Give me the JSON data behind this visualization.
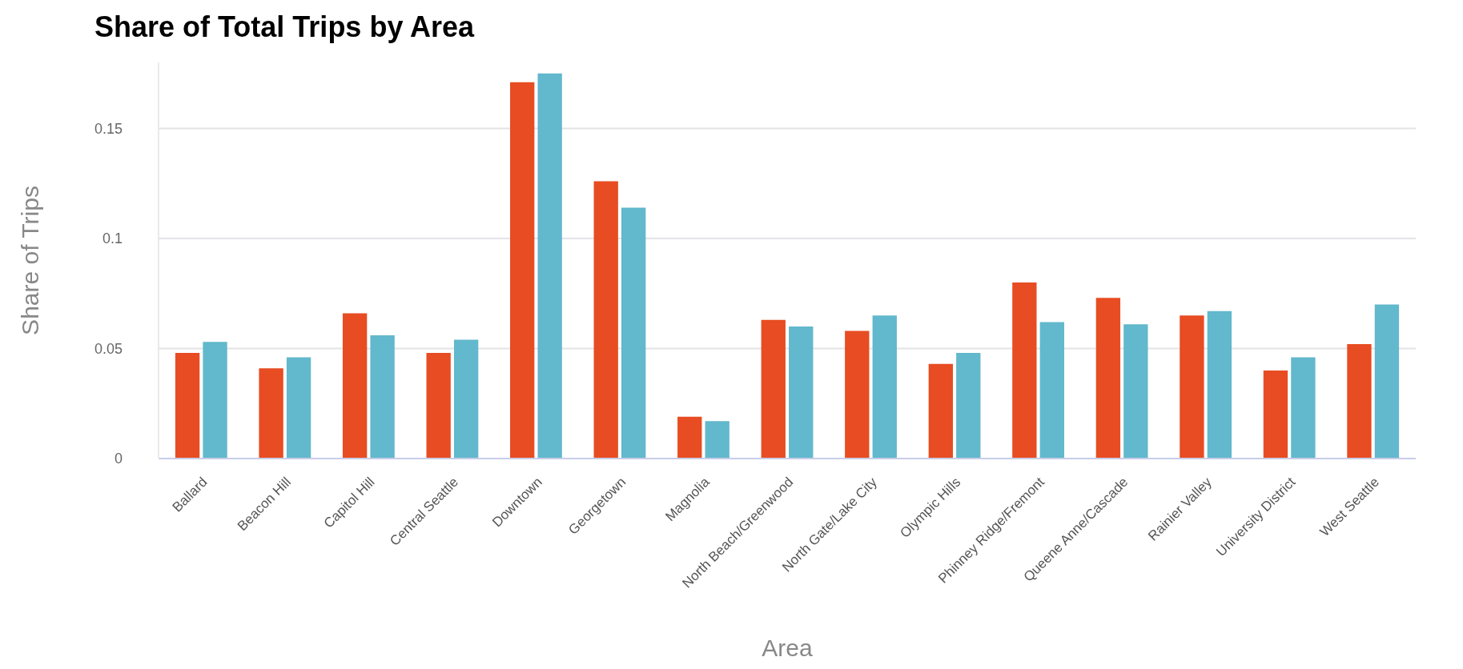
{
  "chart_data": {
    "type": "bar",
    "title": "Share of Total Trips by Area",
    "xlabel": "Area",
    "ylabel": "Share of Trips",
    "categories": [
      "Ballard",
      "Beacon Hill",
      "Capitol Hill",
      "Central Seattle",
      "Downtown",
      "Georgetown",
      "Magnolia",
      "North Beach/Greenwood",
      "North Gate/Lake City",
      "Olympic Hills",
      "Phinney Ridge/Fremont",
      "Queene Anne/Cascade",
      "Rainier Valley",
      "University District",
      "West Seattle"
    ],
    "series": [
      {
        "color": "#e84c22",
        "values": [
          0.048,
          0.041,
          0.066,
          0.048,
          0.171,
          0.126,
          0.019,
          0.063,
          0.058,
          0.043,
          0.08,
          0.073,
          0.065,
          0.04,
          0.052
        ]
      },
      {
        "color": "#62b8cc",
        "values": [
          0.053,
          0.046,
          0.056,
          0.054,
          0.175,
          0.114,
          0.017,
          0.06,
          0.065,
          0.048,
          0.062,
          0.061,
          0.067,
          0.046,
          0.07
        ]
      }
    ],
    "ylim": [
      0,
      0.18
    ],
    "yticks": [
      0,
      0.05,
      0.1,
      0.15
    ],
    "grid": "y"
  }
}
